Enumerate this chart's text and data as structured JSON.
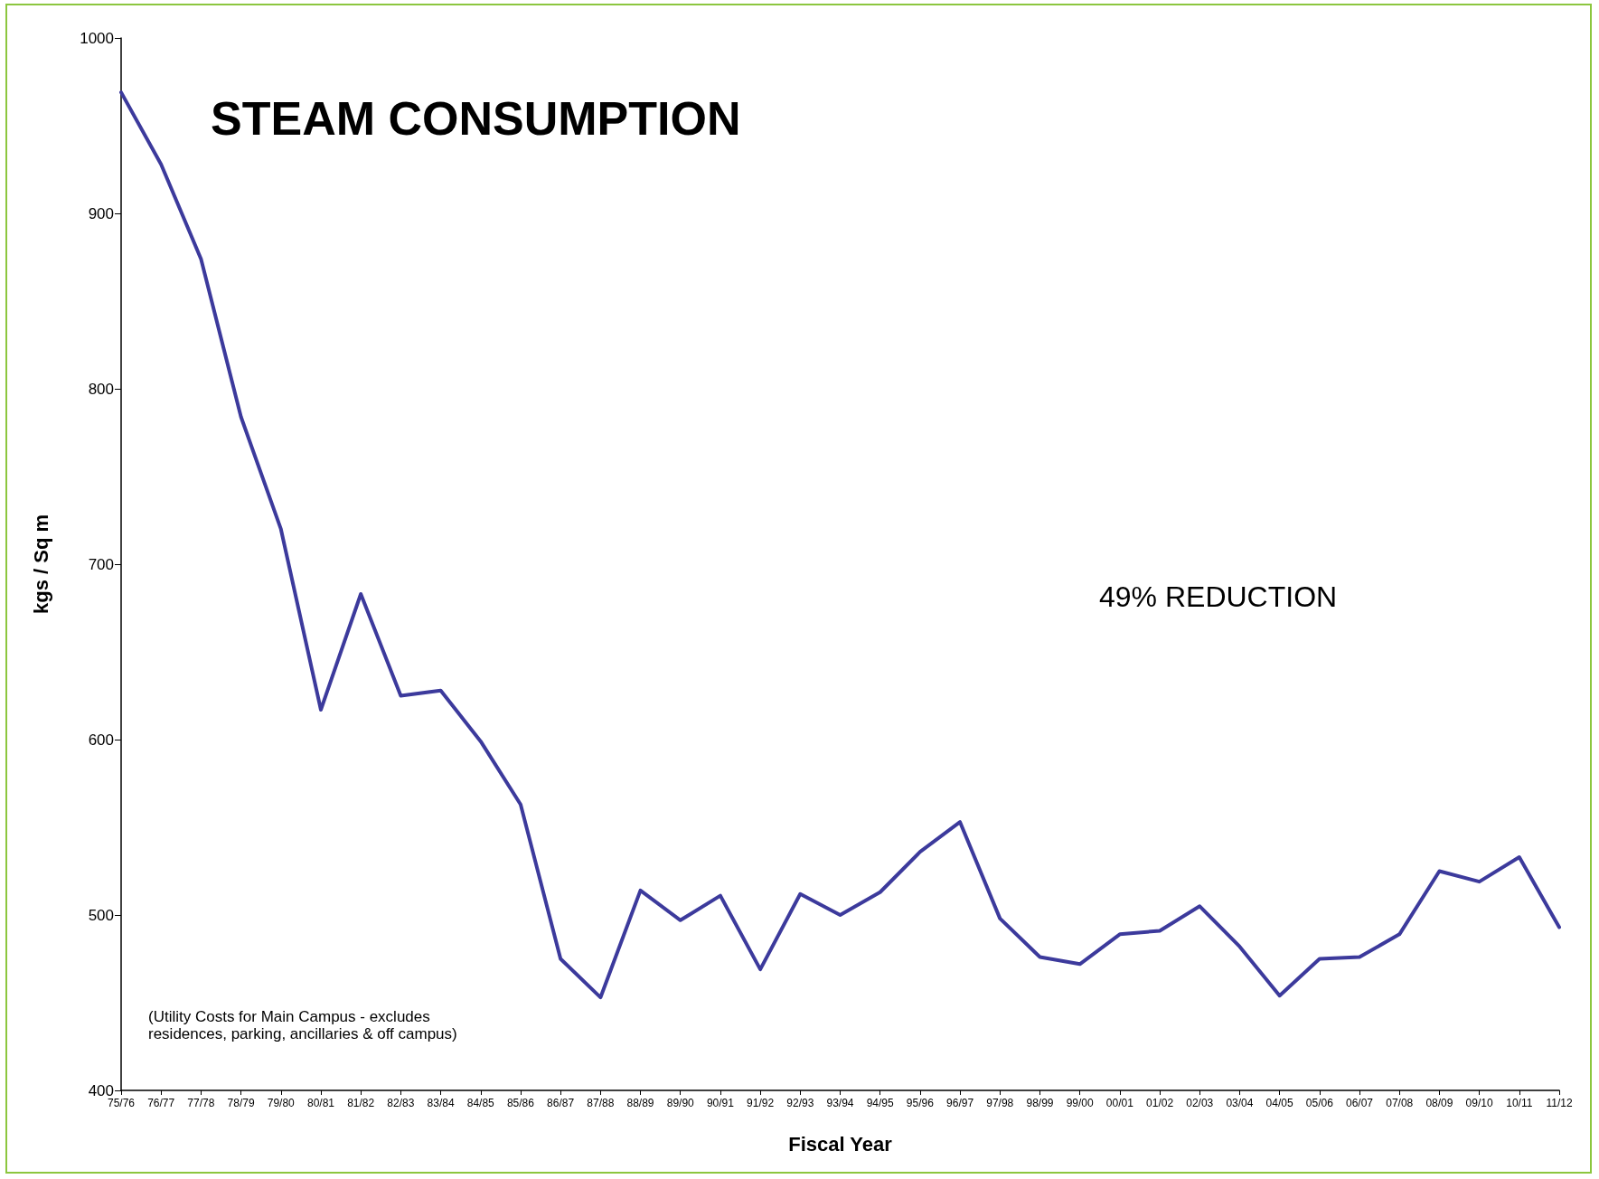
{
  "chart_data": {
    "type": "line",
    "title": "STEAM CONSUMPTION",
    "xlabel": "Fiscal Year",
    "ylabel": "kgs / Sq m",
    "categories": [
      "75/76",
      "76/77",
      "77/78",
      "78/79",
      "79/80",
      "80/81",
      "81/82",
      "82/83",
      "83/84",
      "84/85",
      "85/86",
      "86/87",
      "87/88",
      "88/89",
      "89/90",
      "90/91",
      "91/92",
      "92/93",
      "93/94",
      "94/95",
      "95/96",
      "96/97",
      "97/98",
      "98/99",
      "99/00",
      "00/01",
      "01/02",
      "02/03",
      "03/04",
      "04/05",
      "05/06",
      "06/07",
      "07/08",
      "08/09",
      "09/10",
      "10/11",
      "11/12"
    ],
    "series": [
      {
        "color": "#3c3a9c",
        "values": [
          969,
          928,
          874,
          784,
          720,
          617,
          683,
          625,
          628,
          599,
          563,
          475,
          453,
          514,
          497,
          511,
          469,
          512,
          500,
          513,
          536,
          553,
          498,
          476,
          472,
          489,
          491,
          505,
          482,
          454,
          475,
          476,
          489,
          525,
          519,
          533,
          493
        ]
      }
    ],
    "ylim": [
      400,
      1000
    ],
    "yticks": [
      400,
      500,
      600,
      700,
      800,
      900,
      1000
    ],
    "grid": false,
    "marker": "none",
    "line_style": "solid",
    "annotations": [
      {
        "text": "49% REDUCTION"
      },
      {
        "text": "(Utility Costs for Main Campus - excludes residences, parking, ancillaries & off campus)"
      }
    ]
  }
}
